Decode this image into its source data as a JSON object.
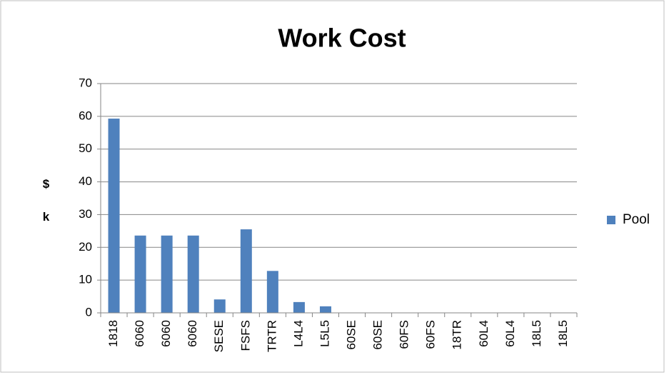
{
  "chart_data": {
    "type": "bar",
    "title": "Work Cost",
    "y_label": "$ k",
    "categories": [
      "1818",
      "6060",
      "6060",
      "6060",
      "SESE",
      "FSFS",
      "TRTR",
      "L4L4",
      "L5L5",
      "60SE",
      "60SE",
      "60FS",
      "60FS",
      "18TR",
      "60L4",
      "60L4",
      "18L5",
      "18L5"
    ],
    "series": [
      {
        "name": "Pool",
        "color": "#4f81bd",
        "values": [
          59.3,
          23.6,
          23.6,
          23.6,
          4.1,
          25.5,
          12.8,
          3.3,
          2,
          0,
          0,
          0,
          0,
          0,
          0,
          0,
          0,
          0
        ]
      }
    ],
    "ylim": [
      0,
      70
    ],
    "yticks": [
      0,
      10,
      20,
      30,
      40,
      50,
      60,
      70
    ],
    "grid": true,
    "legend": "right"
  }
}
